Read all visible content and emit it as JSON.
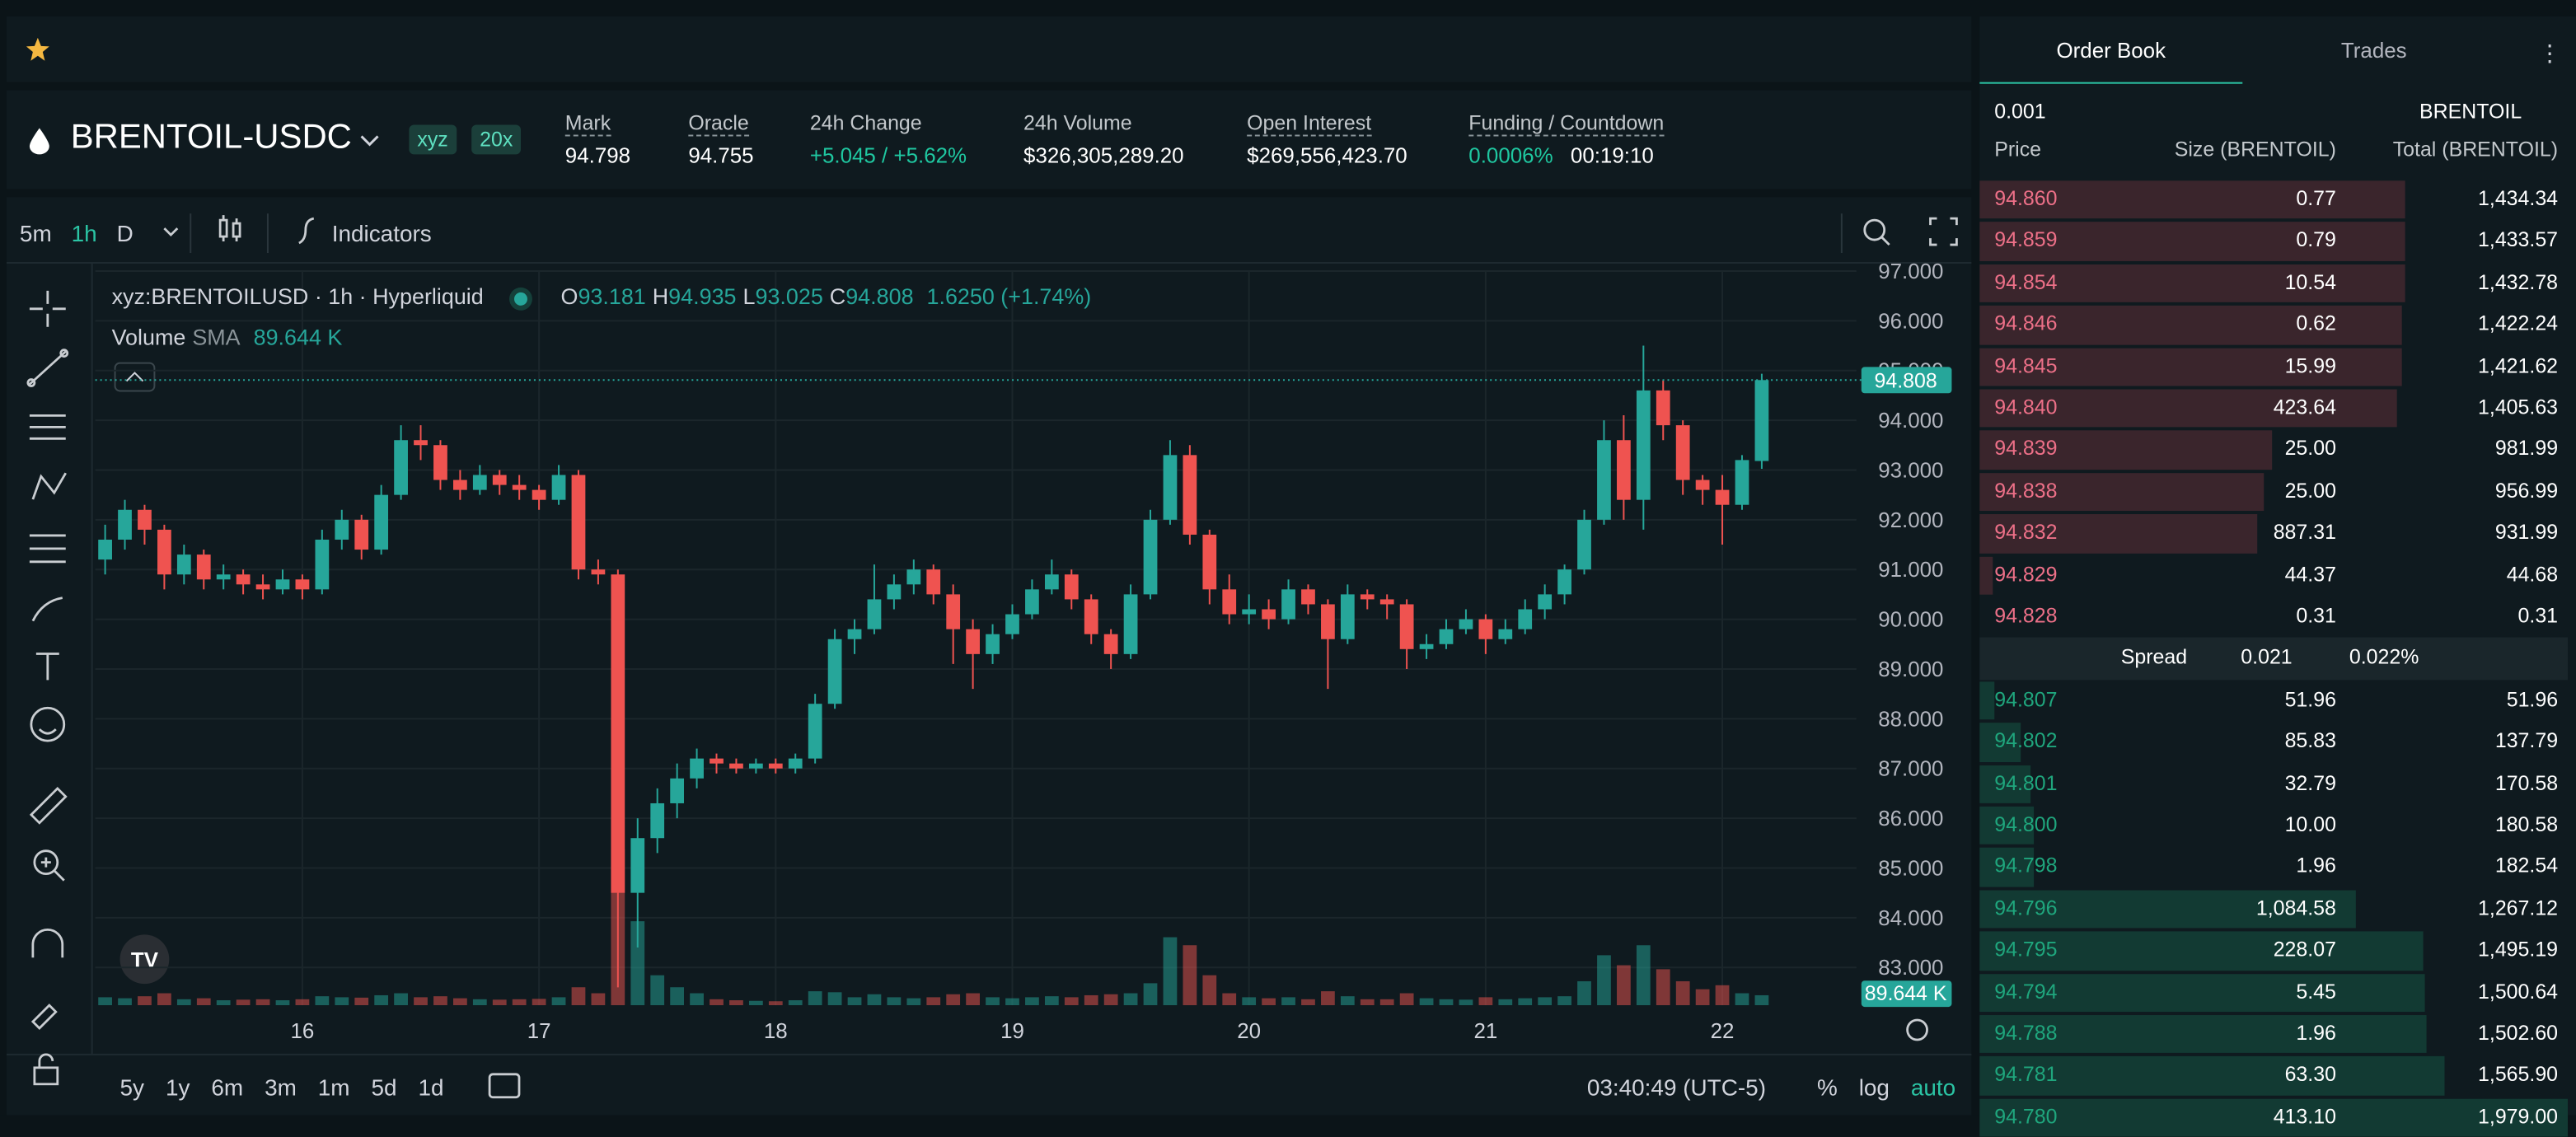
{
  "header": {
    "symbol": "BRENTOIL-USDC",
    "badges": [
      "xyz",
      "20x"
    ],
    "stats": [
      {
        "label": "Mark",
        "value": "94.798"
      },
      {
        "label": "Oracle",
        "value": "94.755"
      },
      {
        "label": "24h Change",
        "value": "+5.045 / +5.62%"
      },
      {
        "label": "24h Volume",
        "value": "$326,305,289.20"
      },
      {
        "label": "Open Interest",
        "value": "$269,556,423.70"
      },
      {
        "label": "Funding / Countdown",
        "value": "0.0006%",
        "value2": "00:19:10"
      }
    ]
  },
  "toolbar": {
    "intervals": [
      "5m",
      "1h",
      "D"
    ],
    "indicators": "Indicators"
  },
  "chart_data": {
    "type": "candlestick",
    "title": "xyz:BRENTOILUSD · 1h · Hyperliquid",
    "ohlc_labels": [
      "O",
      "H",
      "L",
      "C"
    ],
    "change": "1.6250 (+1.74%)",
    "volume_label": "Volume",
    "sma_label": "SMA",
    "sma_value": "89.644 K",
    "up_color": "#26a69a",
    "down_color": "#ef5350",
    "grid": true,
    "xlim": [
      -0.5,
      88.8
    ],
    "xticks": [
      {
        "value": 10,
        "label": "16"
      },
      {
        "value": 22,
        "label": "17"
      },
      {
        "value": 34,
        "label": "18"
      },
      {
        "value": 46,
        "label": "19"
      },
      {
        "value": 58,
        "label": "20"
      },
      {
        "value": 70,
        "label": "21"
      },
      {
        "value": 82,
        "label": "22"
      }
    ],
    "ylim": [
      82.24,
      97
    ],
    "yticks": [
      {
        "value": 83,
        "label": "83.000"
      },
      {
        "value": 84,
        "label": "84.000"
      },
      {
        "value": 85,
        "label": "85.000"
      },
      {
        "value": 86,
        "label": "86.000"
      },
      {
        "value": 87,
        "label": "87.000"
      },
      {
        "value": 88,
        "label": "88.000"
      },
      {
        "value": 89,
        "label": "89.000"
      },
      {
        "value": 90,
        "label": "90.000"
      },
      {
        "value": 91,
        "label": "91.000"
      },
      {
        "value": 92,
        "label": "92.000"
      },
      {
        "value": 93,
        "label": "93.000"
      },
      {
        "value": 94,
        "label": "94.000"
      },
      {
        "value": 95,
        "label": "95.000"
      },
      {
        "value": 96,
        "label": "96.000"
      },
      {
        "value": 97,
        "label": "97.000"
      }
    ],
    "candles": [
      [
        91.2,
        91.9,
        90.9,
        91.6,
        40
      ],
      [
        91.6,
        92.4,
        91.4,
        92.2,
        35
      ],
      [
        92.2,
        92.3,
        91.5,
        91.8,
        45
      ],
      [
        91.8,
        91.9,
        90.6,
        90.9,
        60
      ],
      [
        90.9,
        91.5,
        90.7,
        91.3,
        30
      ],
      [
        91.3,
        91.4,
        90.6,
        90.8,
        35
      ],
      [
        90.8,
        91.1,
        90.6,
        90.9,
        25
      ],
      [
        90.9,
        91.0,
        90.5,
        90.7,
        28
      ],
      [
        90.7,
        90.9,
        90.4,
        90.6,
        30
      ],
      [
        90.6,
        91.0,
        90.5,
        90.8,
        25
      ],
      [
        90.8,
        90.9,
        90.4,
        90.6,
        30
      ],
      [
        90.6,
        91.8,
        90.5,
        91.6,
        45
      ],
      [
        91.6,
        92.2,
        91.4,
        92.0,
        40
      ],
      [
        92.0,
        92.1,
        91.2,
        91.4,
        38
      ],
      [
        91.4,
        92.7,
        91.3,
        92.5,
        50
      ],
      [
        92.5,
        93.9,
        92.4,
        93.6,
        60
      ],
      [
        93.6,
        93.9,
        93.2,
        93.5,
        40
      ],
      [
        93.5,
        93.6,
        92.6,
        92.8,
        45
      ],
      [
        92.8,
        93.0,
        92.4,
        92.6,
        35
      ],
      [
        92.6,
        93.1,
        92.5,
        92.9,
        30
      ],
      [
        92.9,
        93.0,
        92.5,
        92.7,
        28
      ],
      [
        92.7,
        92.9,
        92.4,
        92.6,
        30
      ],
      [
        92.6,
        92.7,
        92.2,
        92.4,
        32
      ],
      [
        92.4,
        93.1,
        92.3,
        92.9,
        40
      ],
      [
        92.9,
        93.0,
        90.8,
        91.0,
        90
      ],
      [
        91.0,
        91.2,
        90.7,
        90.9,
        60
      ],
      [
        90.9,
        91.0,
        82.6,
        84.5,
        780
      ],
      [
        84.5,
        86.0,
        83.4,
        85.6,
        420
      ],
      [
        85.6,
        86.6,
        85.3,
        86.3,
        150
      ],
      [
        86.3,
        87.1,
        86.0,
        86.8,
        90
      ],
      [
        86.8,
        87.4,
        86.6,
        87.2,
        60
      ],
      [
        87.2,
        87.3,
        86.9,
        87.1,
        30
      ],
      [
        87.1,
        87.2,
        86.9,
        87.0,
        25
      ],
      [
        87.0,
        87.2,
        86.9,
        87.1,
        22
      ],
      [
        87.1,
        87.2,
        86.9,
        87.0,
        20
      ],
      [
        87.0,
        87.3,
        86.9,
        87.2,
        25
      ],
      [
        87.2,
        88.5,
        87.1,
        88.3,
        70
      ],
      [
        88.3,
        89.8,
        88.2,
        89.6,
        65
      ],
      [
        89.6,
        90.0,
        89.3,
        89.8,
        40
      ],
      [
        89.8,
        91.1,
        89.7,
        90.4,
        55
      ],
      [
        90.4,
        90.9,
        90.2,
        90.7,
        40
      ],
      [
        90.7,
        91.2,
        90.5,
        91.0,
        35
      ],
      [
        91.0,
        91.1,
        90.3,
        90.5,
        40
      ],
      [
        90.5,
        90.7,
        89.1,
        89.8,
        55
      ],
      [
        89.8,
        90.0,
        88.6,
        89.3,
        60
      ],
      [
        89.3,
        89.9,
        89.1,
        89.7,
        40
      ],
      [
        89.7,
        90.3,
        89.6,
        90.1,
        35
      ],
      [
        90.1,
        90.8,
        90.0,
        90.6,
        40
      ],
      [
        90.6,
        91.2,
        90.5,
        90.9,
        45
      ],
      [
        90.9,
        91.0,
        90.2,
        90.4,
        40
      ],
      [
        90.4,
        90.5,
        89.5,
        89.7,
        50
      ],
      [
        89.7,
        89.8,
        89.0,
        89.3,
        55
      ],
      [
        89.3,
        90.7,
        89.2,
        90.5,
        60
      ],
      [
        90.5,
        92.2,
        90.4,
        92.0,
        110
      ],
      [
        92.0,
        93.6,
        91.9,
        93.3,
        340
      ],
      [
        93.3,
        93.5,
        91.5,
        91.7,
        300
      ],
      [
        91.7,
        91.8,
        90.3,
        90.6,
        150
      ],
      [
        90.6,
        90.9,
        89.9,
        90.1,
        60
      ],
      [
        90.1,
        90.5,
        89.9,
        90.2,
        40
      ],
      [
        90.2,
        90.4,
        89.8,
        90.0,
        35
      ],
      [
        90.0,
        90.8,
        89.9,
        90.6,
        40
      ],
      [
        90.6,
        90.7,
        90.1,
        90.3,
        30
      ],
      [
        90.3,
        90.4,
        88.6,
        89.6,
        70
      ],
      [
        89.6,
        90.7,
        89.5,
        90.5,
        45
      ],
      [
        90.5,
        90.6,
        90.2,
        90.4,
        30
      ],
      [
        90.4,
        90.5,
        90.0,
        90.3,
        30
      ],
      [
        90.3,
        90.4,
        89.0,
        89.4,
        60
      ],
      [
        89.4,
        89.7,
        89.2,
        89.5,
        35
      ],
      [
        89.5,
        90.0,
        89.4,
        89.8,
        30
      ],
      [
        89.8,
        90.2,
        89.7,
        90.0,
        28
      ],
      [
        90.0,
        90.1,
        89.3,
        89.6,
        40
      ],
      [
        89.6,
        90.0,
        89.5,
        89.8,
        30
      ],
      [
        89.8,
        90.4,
        89.7,
        90.2,
        35
      ],
      [
        90.2,
        90.7,
        90.0,
        90.5,
        40
      ],
      [
        90.5,
        91.1,
        90.3,
        91.0,
        45
      ],
      [
        91.0,
        92.2,
        90.9,
        92.0,
        120
      ],
      [
        92.0,
        94.0,
        91.9,
        93.6,
        250
      ],
      [
        93.6,
        94.1,
        92.0,
        92.4,
        200
      ],
      [
        92.4,
        95.5,
        91.8,
        94.6,
        300
      ],
      [
        94.6,
        94.8,
        93.6,
        93.9,
        180
      ],
      [
        93.9,
        94.0,
        92.5,
        92.8,
        120
      ],
      [
        92.8,
        92.9,
        92.3,
        92.6,
        80
      ],
      [
        92.6,
        92.9,
        91.5,
        92.3,
        100
      ],
      [
        92.3,
        93.3,
        92.2,
        93.2,
        60
      ],
      [
        93.181,
        94.935,
        93.025,
        94.808,
        50
      ]
    ]
  },
  "range_bar": {
    "ranges": [
      "5y",
      "1y",
      "6m",
      "3m",
      "1m",
      "5d",
      "1d"
    ],
    "time": "03:40:49 (UTC-5)",
    "options": [
      "%",
      "log",
      "auto"
    ]
  },
  "order_book": {
    "tabs": [
      "Order Book",
      "Trades"
    ],
    "tick_size": "0.001",
    "unit": "BRENTOIL",
    "columns": [
      "Price",
      "Size (BRENTOIL)",
      "Total (BRENTOIL)"
    ],
    "asks": [
      [
        "94.860",
        "0.77",
        "1,434.34"
      ],
      [
        "94.859",
        "0.79",
        "1,433.57"
      ],
      [
        "94.854",
        "10.54",
        "1,432.78"
      ],
      [
        "94.846",
        "0.62",
        "1,422.24"
      ],
      [
        "94.845",
        "15.99",
        "1,421.62"
      ],
      [
        "94.840",
        "423.64",
        "1,405.63"
      ],
      [
        "94.839",
        "25.00",
        "981.99"
      ],
      [
        "94.838",
        "25.00",
        "956.99"
      ],
      [
        "94.832",
        "887.31",
        "931.99"
      ],
      [
        "94.829",
        "44.37",
        "44.68"
      ],
      [
        "94.828",
        "0.31",
        "0.31"
      ]
    ],
    "spread": {
      "label": "Spread",
      "value": "0.021",
      "percent": "0.022%"
    },
    "bids": [
      [
        "94.807",
        "51.96",
        "51.96"
      ],
      [
        "94.802",
        "85.83",
        "137.79"
      ],
      [
        "94.801",
        "32.79",
        "170.58"
      ],
      [
        "94.800",
        "10.00",
        "180.58"
      ],
      [
        "94.798",
        "1.96",
        "182.54"
      ],
      [
        "94.796",
        "1,084.58",
        "1,267.12"
      ],
      [
        "94.795",
        "228.07",
        "1,495.19"
      ],
      [
        "94.794",
        "5.45",
        "1,500.64"
      ],
      [
        "94.788",
        "1.96",
        "1,502.60"
      ],
      [
        "94.781",
        "63.30",
        "1,565.90"
      ],
      [
        "94.780",
        "413.10",
        "1,979.00"
      ]
    ]
  }
}
